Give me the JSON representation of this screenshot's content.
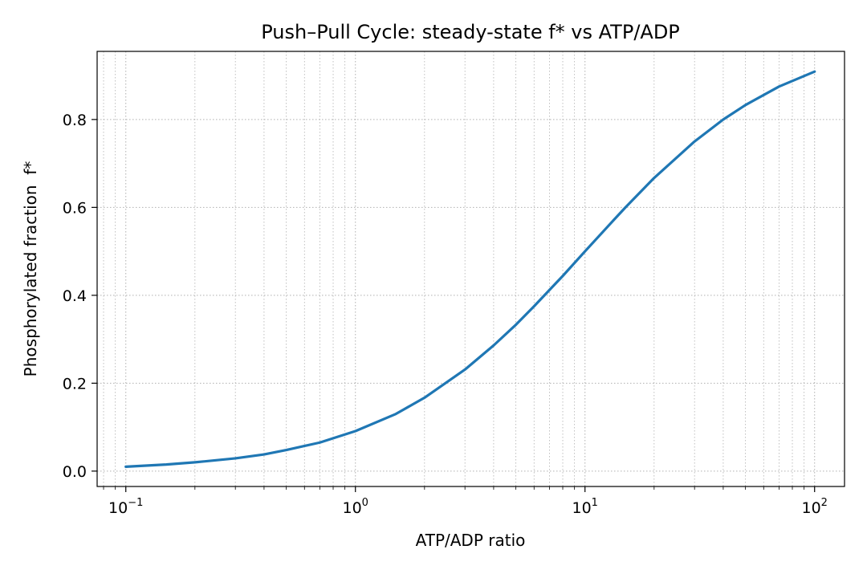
{
  "chart_data": {
    "type": "line",
    "title": "Push–Pull Cycle: steady-state f* vs ATP/ADP",
    "xlabel": "ATP/ADP ratio",
    "ylabel": "Phosphorylated fraction  f*",
    "xscale": "log",
    "xlim": [
      0.075,
      135
    ],
    "ylim": [
      -0.035,
      0.955
    ],
    "grid": true,
    "x_ticks": [
      {
        "value": 0.1,
        "base": "10",
        "exp": "−1"
      },
      {
        "value": 1,
        "base": "10",
        "exp": "0"
      },
      {
        "value": 10,
        "base": "10",
        "exp": "1"
      },
      {
        "value": 100,
        "base": "10",
        "exp": "2"
      }
    ],
    "y_ticks": [
      {
        "value": 0.0,
        "label": "0.0"
      },
      {
        "value": 0.2,
        "label": "0.2"
      },
      {
        "value": 0.4,
        "label": "0.4"
      },
      {
        "value": 0.6,
        "label": "0.6"
      },
      {
        "value": 0.8,
        "label": "0.8"
      }
    ],
    "series": [
      {
        "color": "#1f77b4",
        "x": [
          0.1,
          0.15,
          0.2,
          0.3,
          0.4,
          0.5,
          0.7,
          1,
          1.5,
          2,
          3,
          4,
          5,
          6,
          7,
          8,
          10,
          13,
          15,
          20,
          30,
          40,
          50,
          70,
          100
        ],
        "y": [
          0.01,
          0.015,
          0.02,
          0.029,
          0.038,
          0.048,
          0.065,
          0.091,
          0.13,
          0.167,
          0.231,
          0.286,
          0.333,
          0.375,
          0.412,
          0.444,
          0.5,
          0.565,
          0.6,
          0.667,
          0.75,
          0.8,
          0.833,
          0.875,
          0.909
        ]
      }
    ]
  }
}
